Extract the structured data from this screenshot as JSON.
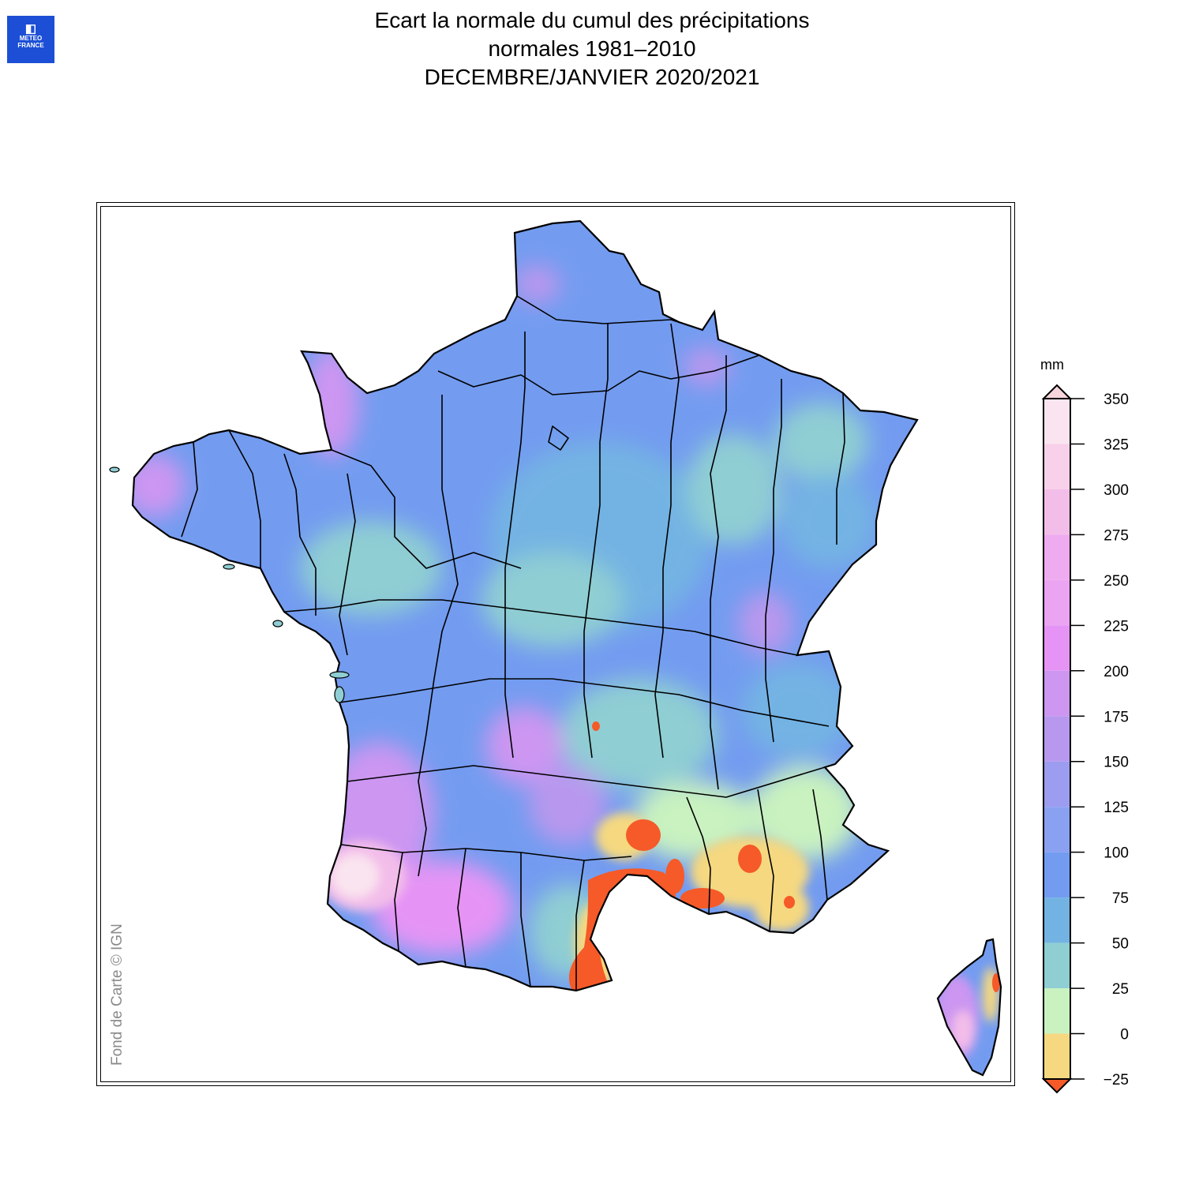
{
  "logo": {
    "glyph": "◧",
    "line1": "METEO",
    "line2": "FRANCE"
  },
  "title": {
    "line1": "Ecart la normale du cumul des précipitations",
    "line2": "normales 1981–2010",
    "line3": "DECEMBRE/JANVIER 2020/2021"
  },
  "credit": "Fond de Carte © IGN",
  "legend": {
    "unit": "mm",
    "min": -25,
    "max": 350,
    "ticks": [
      {
        "value": 350,
        "label": "350"
      },
      {
        "value": 325,
        "label": "325"
      },
      {
        "value": 300,
        "label": "300"
      },
      {
        "value": 275,
        "label": "275"
      },
      {
        "value": 250,
        "label": "250"
      },
      {
        "value": 225,
        "label": "225"
      },
      {
        "value": 200,
        "label": "200"
      },
      {
        "value": 175,
        "label": "175"
      },
      {
        "value": 150,
        "label": "150"
      },
      {
        "value": 125,
        "label": "125"
      },
      {
        "value": 100,
        "label": "100"
      },
      {
        "value": 75,
        "label": "75"
      },
      {
        "value": 50,
        "label": "50"
      },
      {
        "value": 25,
        "label": "25"
      },
      {
        "value": 0,
        "label": "0"
      },
      {
        "value": -25,
        "label": "−25"
      }
    ],
    "bands": [
      {
        "from": 325,
        "to": 350,
        "color": "#fae4ef"
      },
      {
        "from": 300,
        "to": 325,
        "color": "#f8d0ea"
      },
      {
        "from": 275,
        "to": 300,
        "color": "#f3bde9"
      },
      {
        "from": 250,
        "to": 275,
        "color": "#efabef"
      },
      {
        "from": 225,
        "to": 250,
        "color": "#eba4f2"
      },
      {
        "from": 200,
        "to": 225,
        "color": "#e594f5"
      },
      {
        "from": 175,
        "to": 200,
        "color": "#cc96f1"
      },
      {
        "from": 150,
        "to": 175,
        "color": "#b898ee"
      },
      {
        "from": 125,
        "to": 150,
        "color": "#9c9cf0"
      },
      {
        "from": 100,
        "to": 125,
        "color": "#8aa0f0"
      },
      {
        "from": 75,
        "to": 100,
        "color": "#739cf0"
      },
      {
        "from": 50,
        "to": 75,
        "color": "#73b3e3"
      },
      {
        "from": 25,
        "to": 50,
        "color": "#8fced3"
      },
      {
        "from": 0,
        "to": 25,
        "color": "#c9f2c0"
      },
      {
        "from": -25,
        "to": 0,
        "color": "#f5d880"
      }
    ],
    "over_color": "#f6d6dc",
    "under_color": "#f55a28"
  },
  "colors": {
    "base": "#739cf0",
    "light_blue": "#73b3e3",
    "teal": "#8fced3",
    "green": "#c9f2c0",
    "yellow": "#f5d880",
    "red": "#f55a28",
    "lavender": "#b898ee",
    "purple": "#cc96f1",
    "pink": "#e594f5",
    "pale_pink": "#f3bde9",
    "near_white": "#fae4ef"
  }
}
